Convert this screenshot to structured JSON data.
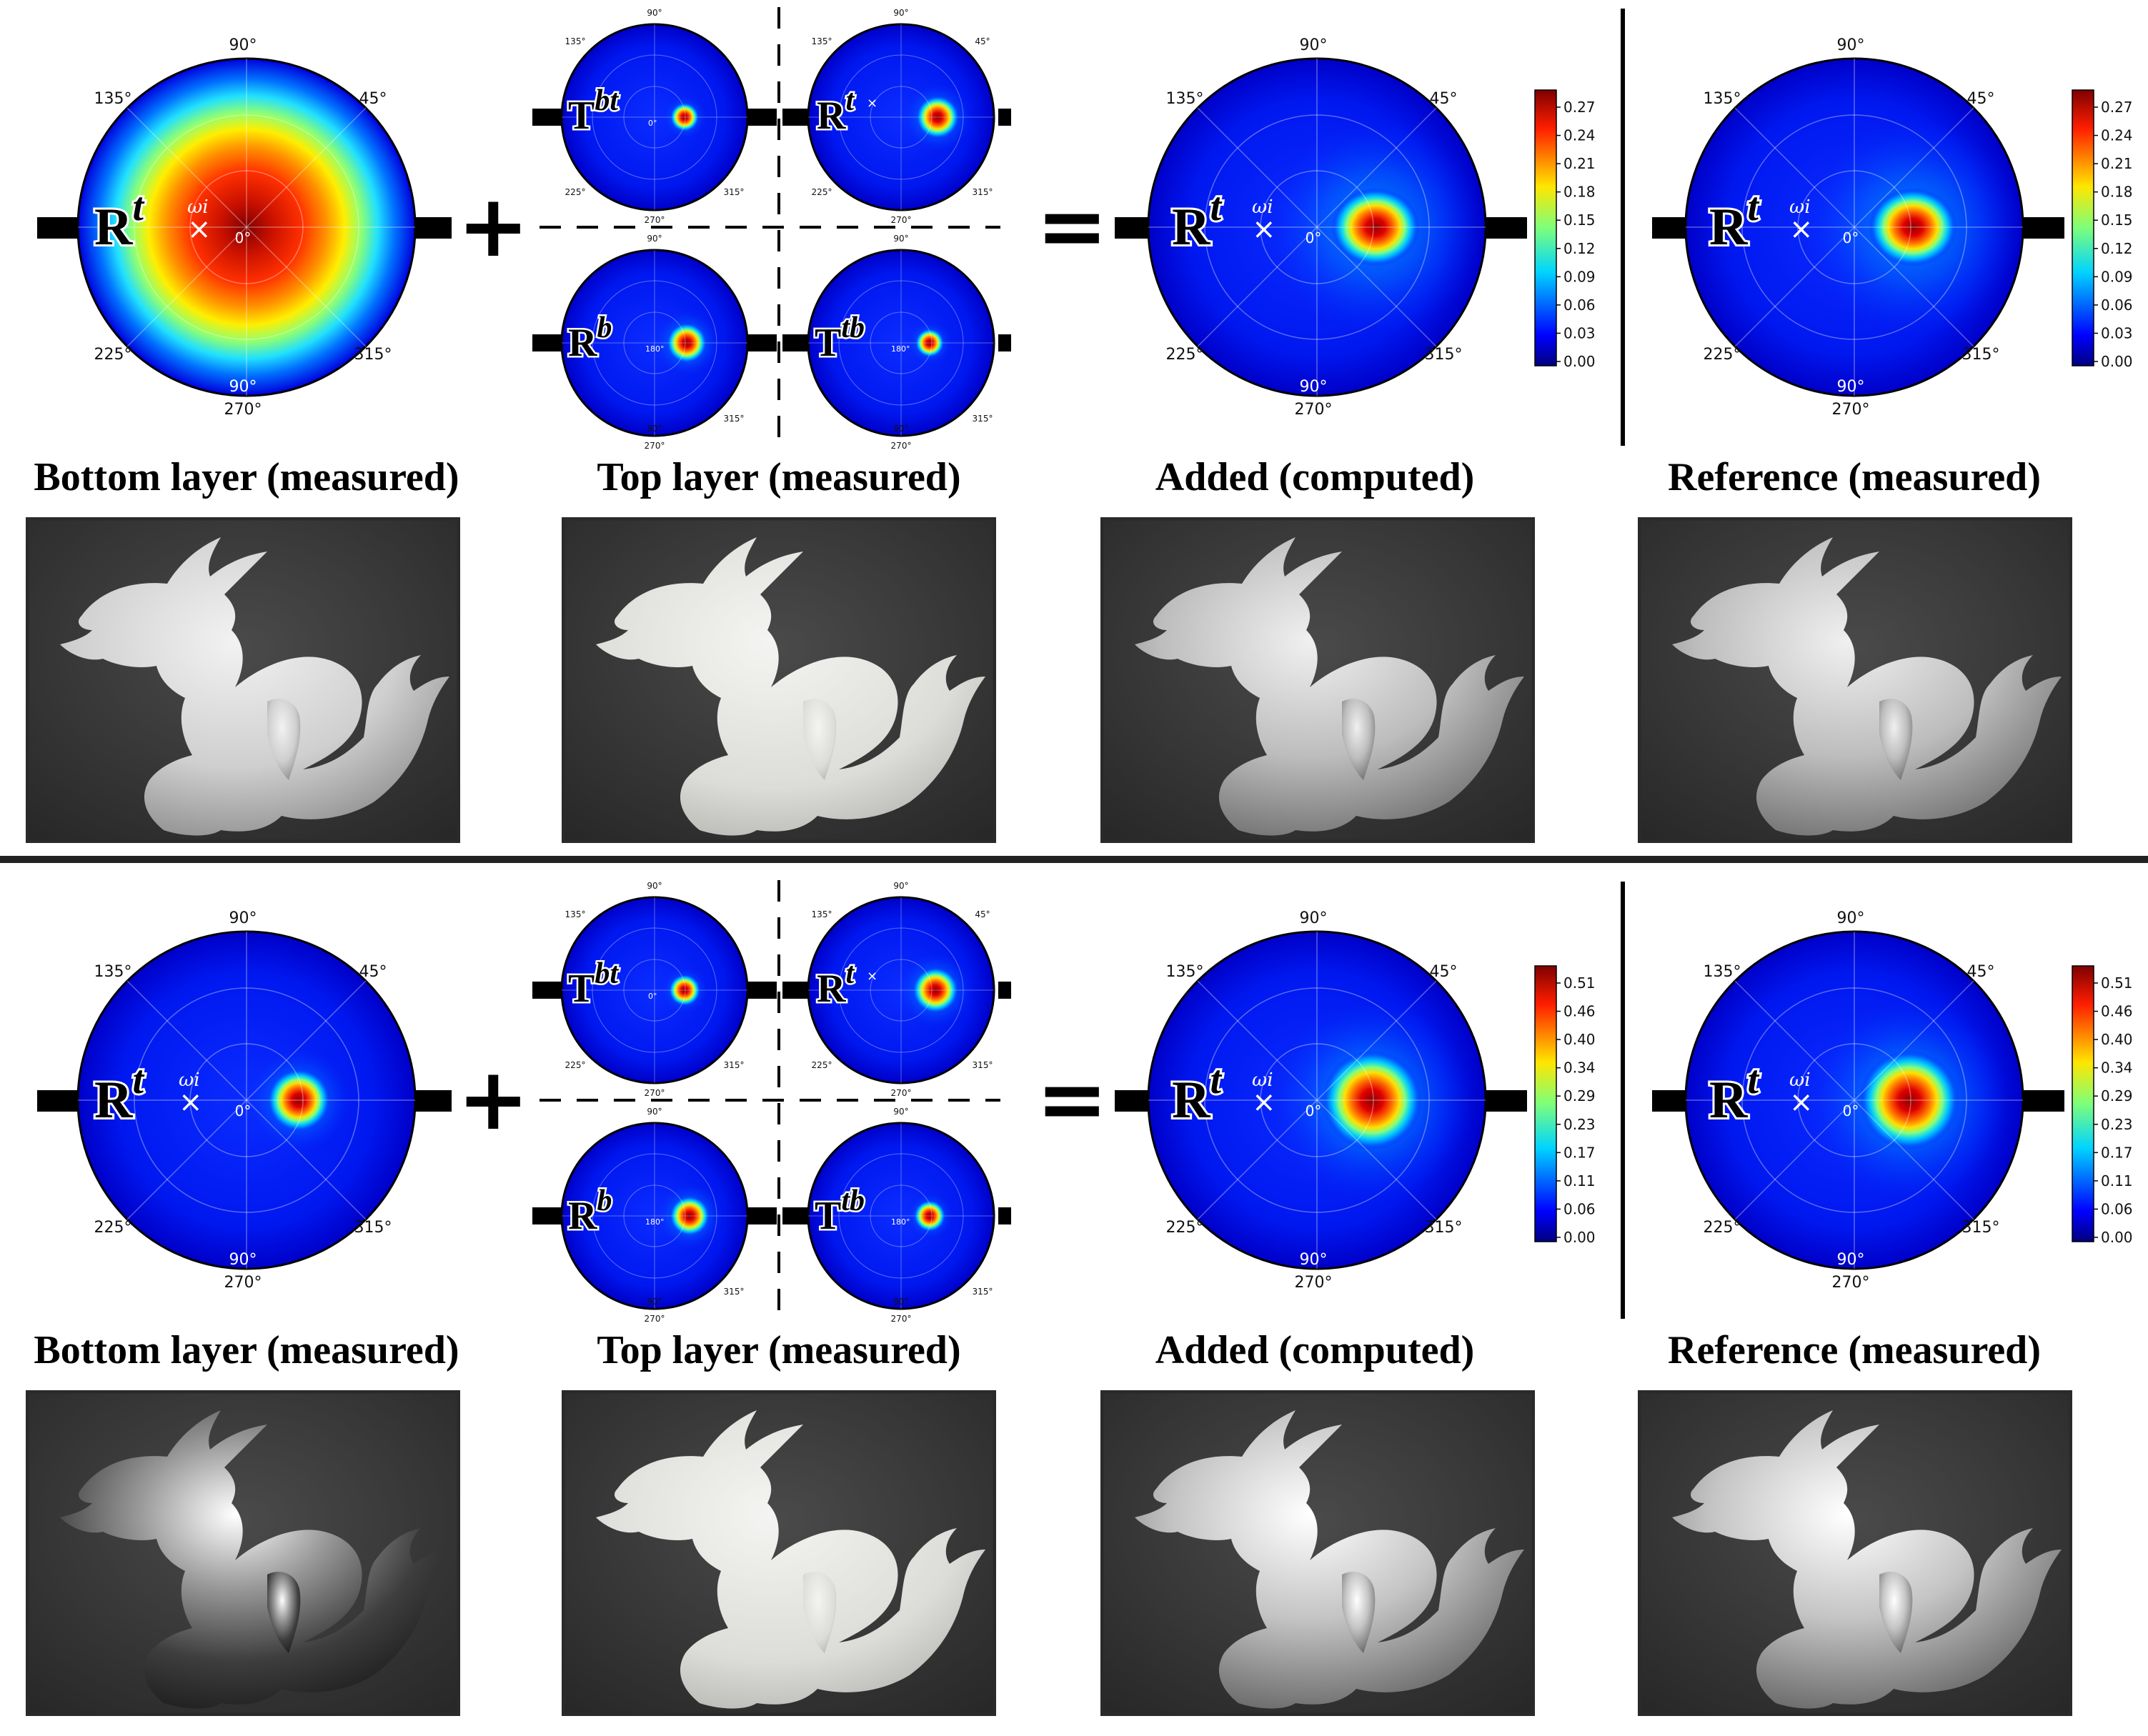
{
  "captions": {
    "bottom": "Bottom layer (measured)",
    "top": "Top layer (measured)",
    "added": "Added (computed)",
    "reference": "Reference (measured)"
  },
  "operators": {
    "plus": "+",
    "equals": "="
  },
  "polar_labels": {
    "angles": [
      "90°",
      "45°",
      "135°",
      "225°",
      "315°",
      "270°"
    ],
    "center_zero": "0°",
    "center_180": "180°",
    "radial": "90°"
  },
  "panel_labels": {
    "rt": [
      "R",
      "t"
    ],
    "tbt": [
      "T",
      "bt"
    ],
    "rbj": [
      "R",
      "b"
    ],
    "ttb": [
      "T",
      "tb"
    ],
    "omega": "ωi",
    "cross": "×"
  },
  "colors": {
    "jet": [
      "#00007f",
      "#0000ff",
      "#0080ff",
      "#00ffff",
      "#80ff80",
      "#ffff00",
      "#ff8000",
      "#ff0000",
      "#7f0000"
    ],
    "render_bg": "#383838",
    "frame": "#2a2a2a"
  },
  "rows": [
    {
      "colorbar_ticks": [
        "0.27",
        "0.24",
        "0.21",
        "0.18",
        "0.15",
        "0.12",
        "0.09",
        "0.06",
        "0.03",
        "0.00"
      ],
      "renders": [
        "matte-white-dragon",
        "translucent-white-dragon",
        "satin-dragon",
        "satin-dragon"
      ]
    },
    {
      "colorbar_ticks": [
        "0.51",
        "0.46",
        "0.40",
        "0.34",
        "0.29",
        "0.23",
        "0.17",
        "0.11",
        "0.06",
        "0.00"
      ],
      "renders": [
        "metallic-dragon",
        "translucent-white-dragon",
        "metallic-pearl-dragon",
        "metallic-pearl-dragon"
      ]
    }
  ]
}
